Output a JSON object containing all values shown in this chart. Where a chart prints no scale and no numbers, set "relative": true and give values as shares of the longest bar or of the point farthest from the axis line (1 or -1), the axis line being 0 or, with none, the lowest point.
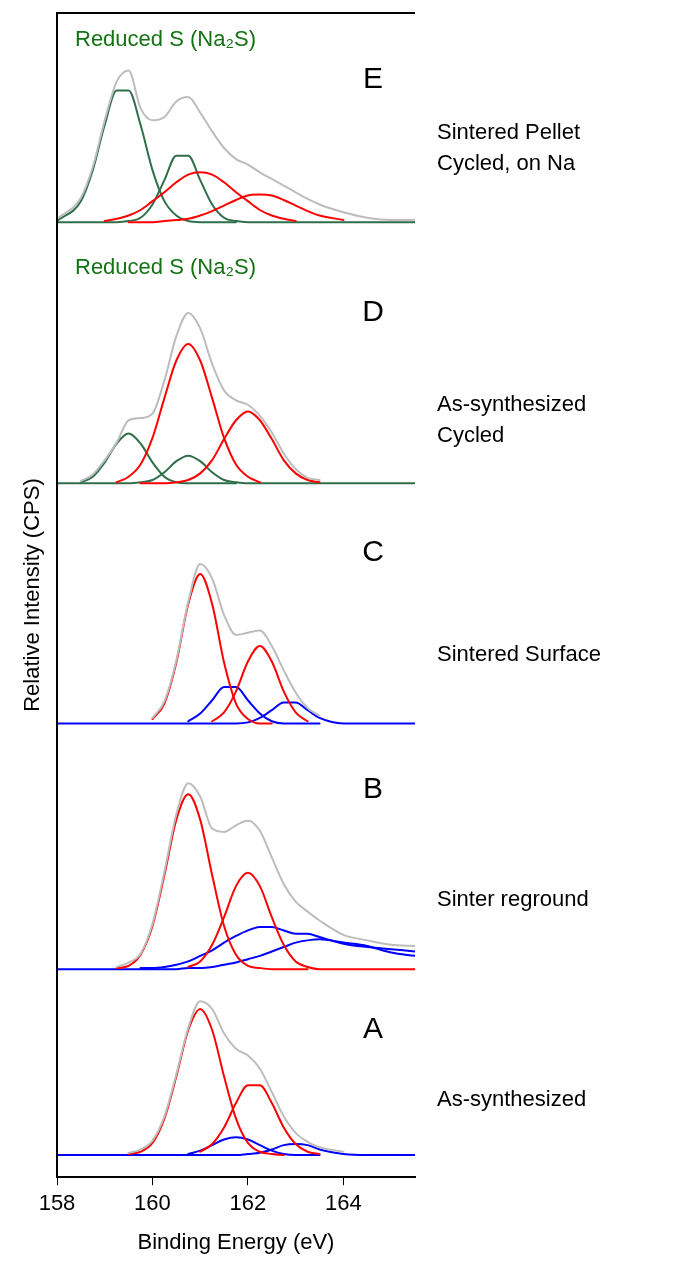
{
  "chart_data": {
    "type": "line",
    "relative": true,
    "xlabel": "Binding Energy (eV)",
    "ylabel": "Relative Intensity (CPS)",
    "x": [
      158,
      158.5,
      158.75,
      159,
      159.25,
      159.5,
      159.75,
      160,
      160.25,
      160.5,
      160.75,
      161,
      161.25,
      161.5,
      161.75,
      162,
      162.25,
      162.5,
      162.75,
      163,
      163.25,
      163.5,
      164,
      164.5,
      165,
      165.5
    ],
    "xlim": [
      158,
      165.5
    ],
    "xticks": [
      158,
      160,
      162,
      164
    ],
    "tick_labels": "x",
    "line_style": "solid",
    "series": [
      {
        "color": "#bdbdbd",
        "values": [
          0.866,
          0.885,
          0.913,
          0.955,
          0.99,
          1,
          0.966,
          0.955,
          0.958,
          0.972,
          0.976,
          0.962,
          0.945,
          0.93,
          0.92,
          0.915,
          0.908,
          0.902,
          0.896,
          0.89,
          0.884,
          0.879,
          0.872,
          0.867,
          0.865,
          0.865
        ]
      },
      {
        "color": "#ff0000",
        "values": [
          null,
          null,
          null,
          0.864,
          0.866,
          0.869,
          0.874,
          0.882,
          0.89,
          0.899,
          0.906,
          0.908,
          0.906,
          0.899,
          0.89,
          0.882,
          0.874,
          0.869,
          0.866,
          0.864,
          null,
          null,
          null,
          null,
          null,
          null
        ]
      },
      {
        "color": "#ff0000",
        "values": [
          null,
          null,
          null,
          null,
          null,
          0.863,
          0.863,
          0.863,
          0.864,
          0.865,
          0.866,
          0.869,
          0.873,
          0.878,
          0.883,
          0.887,
          0.888,
          0.887,
          0.883,
          0.878,
          0.873,
          0.869,
          0.865,
          null,
          null,
          null
        ]
      },
      {
        "color": "#2f6f4a",
        "values": [
          0.864,
          0.882,
          0.91,
          0.951,
          0.982,
          0.982,
          0.951,
          0.91,
          0.882,
          0.869,
          0.864,
          0.863,
          0.863,
          0.863,
          0.863,
          null,
          null,
          null,
          null,
          null,
          null,
          null,
          null,
          null,
          null,
          null
        ]
      },
      {
        "color": "#2f6f4a",
        "values": [
          0.863,
          0.863,
          0.863,
          0.863,
          0.863,
          0.864,
          0.867,
          0.879,
          0.901,
          0.923,
          0.923,
          0.901,
          0.879,
          0.867,
          0.864,
          0.863,
          0.863,
          0.863,
          0.863,
          0.863,
          0.863,
          0.863,
          0.863,
          0.863,
          0.863,
          0.863
        ]
      },
      {
        "color": "#bdbdbd",
        "values": [
          null,
          0.629,
          0.635,
          0.648,
          0.664,
          0.684,
          0.686,
          0.69,
          0.72,
          0.76,
          0.781,
          0.767,
          0.735,
          0.711,
          0.702,
          0.698,
          0.688,
          0.673,
          0.654,
          0.64,
          0.632,
          0.63,
          null,
          null,
          null,
          null
        ]
      },
      {
        "color": "#ff0000",
        "values": [
          null,
          null,
          null,
          null,
          0.628,
          0.633,
          0.644,
          0.668,
          0.704,
          0.738,
          0.753,
          0.738,
          0.704,
          0.668,
          0.644,
          0.633,
          0.628,
          null,
          null,
          null,
          null,
          null,
          null,
          null,
          null,
          null
        ]
      },
      {
        "color": "#ff0000",
        "values": [
          null,
          null,
          null,
          null,
          null,
          null,
          0.627,
          0.627,
          0.627,
          0.628,
          0.63,
          0.636,
          0.648,
          0.667,
          0.684,
          0.692,
          0.684,
          0.667,
          0.648,
          0.636,
          0.63,
          0.628,
          null,
          null,
          null,
          null
        ]
      },
      {
        "color": "#2f6f4a",
        "values": [
          null,
          0.628,
          0.633,
          0.646,
          0.663,
          0.672,
          0.663,
          0.646,
          0.633,
          0.628,
          0.627,
          0.627,
          0.627,
          0.627,
          0.627,
          null,
          null,
          null,
          null,
          null,
          null,
          null,
          null,
          null,
          null,
          null
        ]
      },
      {
        "color": "#2f6f4a",
        "values": [
          0.627,
          0.627,
          0.627,
          0.627,
          0.627,
          0.627,
          0.628,
          0.63,
          0.637,
          0.647,
          0.652,
          0.647,
          0.637,
          0.63,
          0.628,
          0.627,
          0.627,
          0.627,
          0.627,
          0.627,
          0.627,
          0.627,
          0.627,
          0.627,
          0.627,
          0.627
        ]
      },
      {
        "color": "#bdbdbd",
        "values": [
          null,
          null,
          null,
          null,
          null,
          null,
          null,
          0.415,
          0.43,
          0.467,
          0.52,
          0.554,
          0.541,
          0.508,
          0.49,
          0.492,
          0.494,
          0.48,
          0.458,
          0.438,
          0.424,
          0.417,
          null,
          null,
          null,
          null
        ]
      },
      {
        "color": "#ff0000",
        "values": [
          null,
          null,
          null,
          null,
          null,
          null,
          null,
          0.414,
          0.428,
          0.465,
          0.518,
          0.545,
          0.518,
          0.465,
          0.428,
          0.414,
          0.41,
          0.41,
          null,
          null,
          null,
          null,
          null,
          null,
          null,
          null
        ]
      },
      {
        "color": "#ff0000",
        "values": [
          null,
          null,
          null,
          null,
          null,
          null,
          null,
          null,
          null,
          null,
          null,
          null,
          0.412,
          0.42,
          0.439,
          0.466,
          0.48,
          0.466,
          0.439,
          0.42,
          0.412,
          null,
          null,
          null,
          null,
          null
        ]
      },
      {
        "color": "#0000ff",
        "values": [
          null,
          null,
          null,
          null,
          null,
          null,
          null,
          null,
          null,
          null,
          0.412,
          0.419,
          0.431,
          0.443,
          0.443,
          0.431,
          0.419,
          0.412,
          0.41,
          0.41,
          0.41,
          0.41,
          null,
          null,
          null,
          null
        ]
      },
      {
        "color": "#0000ff",
        "values": [
          0.41,
          0.41,
          0.41,
          0.41,
          0.41,
          0.41,
          0.41,
          0.41,
          0.41,
          0.41,
          0.41,
          0.41,
          0.41,
          0.41,
          0.41,
          0.411,
          0.415,
          0.422,
          0.429,
          0.429,
          0.422,
          0.415,
          0.41,
          0.41,
          0.41,
          0.41
        ]
      },
      {
        "color": "#bdbdbd",
        "values": [
          null,
          null,
          null,
          null,
          0.19,
          0.194,
          0.202,
          0.229,
          0.276,
          0.328,
          0.356,
          0.344,
          0.315,
          0.312,
          0.318,
          0.322,
          0.313,
          0.289,
          0.265,
          0.249,
          0.24,
          0.232,
          0.219,
          0.214,
          0.21,
          0.209
        ]
      },
      {
        "color": "#ff0000",
        "values": [
          null,
          null,
          null,
          null,
          0.189,
          0.191,
          0.201,
          0.227,
          0.273,
          0.323,
          0.346,
          0.323,
          0.273,
          0.227,
          0.201,
          0.191,
          0.189,
          0.188,
          0.188,
          0.188,
          0.188,
          null,
          null,
          null,
          null,
          null
        ]
      },
      {
        "color": "#ff0000",
        "values": [
          null,
          null,
          null,
          null,
          null,
          null,
          null,
          null,
          null,
          null,
          0.19,
          0.195,
          0.21,
          0.235,
          0.263,
          0.275,
          0.263,
          0.235,
          0.21,
          0.195,
          0.19,
          0.188,
          0.188,
          0.188,
          0.188,
          0.188
        ]
      },
      {
        "color": "#0000ff",
        "values": [
          null,
          null,
          null,
          null,
          null,
          null,
          0.189,
          0.189,
          0.19,
          0.192,
          0.195,
          0.2,
          0.205,
          0.212,
          0.218,
          0.223,
          0.226,
          0.226,
          0.223,
          0.22,
          0.22,
          0.217,
          0.211,
          0.208,
          0.206,
          0.204
        ]
      },
      {
        "color": "#0000ff",
        "values": [
          0.188,
          0.188,
          0.188,
          0.188,
          0.188,
          0.188,
          0.188,
          0.188,
          0.188,
          0.188,
          0.189,
          0.189,
          0.19,
          0.192,
          0.194,
          0.197,
          0.2,
          0.204,
          0.208,
          0.212,
          0.214,
          0.215,
          0.212,
          0.209,
          0.203,
          0.2
        ]
      },
      {
        "color": "#bdbdbd",
        "values": [
          null,
          null,
          null,
          null,
          null,
          0.022,
          0.025,
          0.033,
          0.055,
          0.093,
          0.135,
          0.159,
          0.152,
          0.13,
          0.116,
          0.11,
          0.098,
          0.077,
          0.055,
          0.04,
          0.032,
          0.027,
          0.023,
          null,
          null,
          null
        ]
      },
      {
        "color": "#ff0000",
        "values": [
          null,
          null,
          null,
          null,
          null,
          0.021,
          0.023,
          0.031,
          0.053,
          0.091,
          0.133,
          0.152,
          0.133,
          0.091,
          0.053,
          0.031,
          0.023,
          0.021,
          0.02,
          null,
          null,
          null,
          null,
          null,
          null,
          null
        ]
      },
      {
        "color": "#ff0000",
        "values": [
          null,
          null,
          null,
          null,
          null,
          null,
          null,
          null,
          null,
          null,
          null,
          0.023,
          0.03,
          0.045,
          0.067,
          0.083,
          0.083,
          0.067,
          0.045,
          0.03,
          0.023,
          0.021,
          null,
          null,
          null,
          null
        ]
      },
      {
        "color": "#0000ff",
        "values": [
          null,
          null,
          null,
          null,
          null,
          null,
          null,
          null,
          null,
          null,
          0.021,
          0.024,
          0.029,
          0.034,
          0.036,
          0.034,
          0.029,
          0.024,
          0.021,
          0.02,
          0.02,
          0.02,
          null,
          null,
          null,
          null
        ]
      },
      {
        "color": "#0000ff",
        "values": [
          0.02,
          0.02,
          0.02,
          0.02,
          0.02,
          0.02,
          0.02,
          0.02,
          0.02,
          0.02,
          0.02,
          0.02,
          0.02,
          0.02,
          0.02,
          0.021,
          0.022,
          0.025,
          0.029,
          0.03,
          0.029,
          0.025,
          0.021,
          0.02,
          0.02,
          0.02
        ]
      }
    ],
    "annotations": [
      "E",
      "D",
      "C",
      "B",
      "A",
      "Reduced S (Na₂S)",
      "Reduced S (Na₂S)",
      "Sintered Pellet\nCycled, on Na",
      "As-synthesized\nCycled",
      "Sintered Surface",
      "Sinter reground",
      "As-synthesized"
    ]
  }
}
